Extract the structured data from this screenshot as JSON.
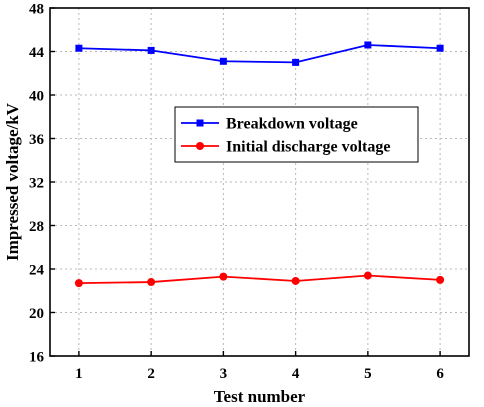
{
  "chart_data": {
    "type": "line",
    "title": "",
    "xlabel": "Test number",
    "ylabel": "Impressed voltage/kV",
    "x": [
      1,
      2,
      3,
      4,
      5,
      6
    ],
    "xlim": [
      0.6,
      6.4
    ],
    "ylim": [
      16,
      48
    ],
    "yticks": [
      16,
      20,
      24,
      28,
      32,
      36,
      40,
      44,
      48
    ],
    "grid": true,
    "legend_position": "center-left",
    "series": [
      {
        "name": "Breakdown voltage",
        "color": "#0000ff",
        "marker": "square",
        "values": [
          44.3,
          44.1,
          43.1,
          43.0,
          44.6,
          44.3
        ]
      },
      {
        "name": "Initial discharge voltage",
        "color": "#ff0000",
        "marker": "circle",
        "values": [
          22.7,
          22.8,
          23.3,
          22.9,
          23.4,
          23.0
        ]
      }
    ]
  }
}
